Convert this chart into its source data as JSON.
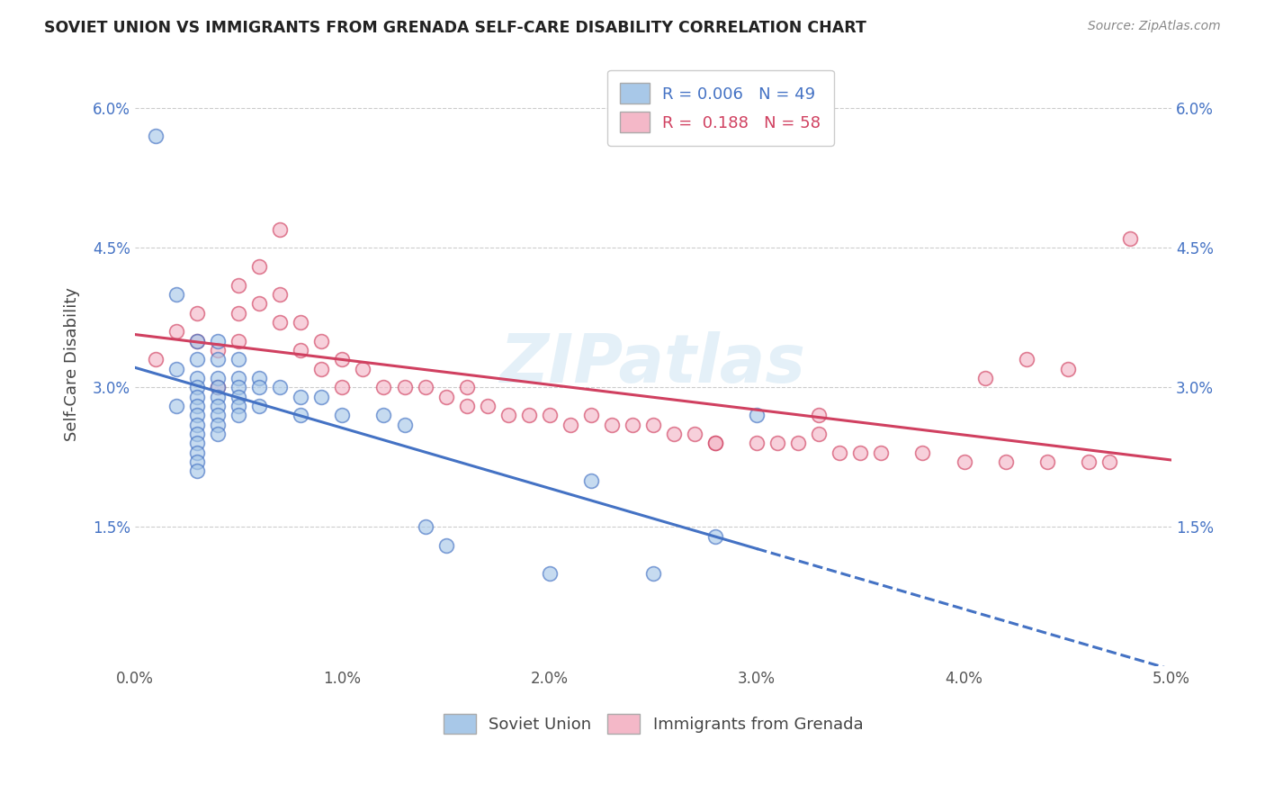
{
  "title": "SOVIET UNION VS IMMIGRANTS FROM GRENADA SELF-CARE DISABILITY CORRELATION CHART",
  "source": "Source: ZipAtlas.com",
  "ylabel": "Self-Care Disability",
  "xlim": [
    0.0,
    0.05
  ],
  "ylim": [
    0.0,
    0.065
  ],
  "xticks": [
    0.0,
    0.01,
    0.02,
    0.03,
    0.04,
    0.05
  ],
  "xticklabels": [
    "0.0%",
    "1.0%",
    "2.0%",
    "3.0%",
    "4.0%",
    "5.0%"
  ],
  "yticks": [
    0.0,
    0.015,
    0.03,
    0.045,
    0.06
  ],
  "yticklabels": [
    "",
    "1.5%",
    "3.0%",
    "4.5%",
    "6.0%"
  ],
  "legend_label1": "Soviet Union",
  "legend_label2": "Immigrants from Grenada",
  "r1": "0.006",
  "n1": "49",
  "r2": "0.188",
  "n2": "58",
  "color1": "#a8c8e8",
  "color2": "#f4b8c8",
  "line_color1": "#4472c4",
  "line_color2": "#d04060",
  "background_color": "#ffffff",
  "watermark": "ZIPatlas",
  "soviet_x": [
    0.001,
    0.002,
    0.002,
    0.002,
    0.003,
    0.003,
    0.003,
    0.003,
    0.003,
    0.003,
    0.003,
    0.003,
    0.003,
    0.003,
    0.003,
    0.003,
    0.003,
    0.004,
    0.004,
    0.004,
    0.004,
    0.004,
    0.004,
    0.004,
    0.004,
    0.004,
    0.005,
    0.005,
    0.005,
    0.005,
    0.005,
    0.005,
    0.006,
    0.006,
    0.006,
    0.007,
    0.008,
    0.008,
    0.009,
    0.01,
    0.012,
    0.013,
    0.014,
    0.015,
    0.02,
    0.022,
    0.025,
    0.028,
    0.03
  ],
  "soviet_y": [
    0.057,
    0.04,
    0.032,
    0.028,
    0.035,
    0.033,
    0.031,
    0.03,
    0.029,
    0.028,
    0.027,
    0.026,
    0.025,
    0.024,
    0.023,
    0.022,
    0.021,
    0.035,
    0.033,
    0.031,
    0.03,
    0.029,
    0.028,
    0.027,
    0.026,
    0.025,
    0.033,
    0.031,
    0.03,
    0.029,
    0.028,
    0.027,
    0.031,
    0.03,
    0.028,
    0.03,
    0.029,
    0.027,
    0.029,
    0.027,
    0.027,
    0.026,
    0.015,
    0.013,
    0.01,
    0.02,
    0.01,
    0.014,
    0.027
  ],
  "grenada_x": [
    0.001,
    0.002,
    0.003,
    0.003,
    0.004,
    0.004,
    0.005,
    0.005,
    0.005,
    0.006,
    0.006,
    0.007,
    0.007,
    0.008,
    0.008,
    0.009,
    0.009,
    0.01,
    0.01,
    0.011,
    0.012,
    0.013,
    0.014,
    0.015,
    0.016,
    0.017,
    0.018,
    0.019,
    0.02,
    0.021,
    0.022,
    0.023,
    0.024,
    0.025,
    0.026,
    0.027,
    0.028,
    0.028,
    0.03,
    0.031,
    0.032,
    0.033,
    0.033,
    0.034,
    0.035,
    0.036,
    0.038,
    0.04,
    0.041,
    0.042,
    0.043,
    0.044,
    0.045,
    0.046,
    0.047,
    0.048,
    0.007,
    0.016
  ],
  "grenada_y": [
    0.033,
    0.036,
    0.038,
    0.035,
    0.034,
    0.03,
    0.041,
    0.038,
    0.035,
    0.043,
    0.039,
    0.04,
    0.037,
    0.037,
    0.034,
    0.035,
    0.032,
    0.033,
    0.03,
    0.032,
    0.03,
    0.03,
    0.03,
    0.029,
    0.028,
    0.028,
    0.027,
    0.027,
    0.027,
    0.026,
    0.027,
    0.026,
    0.026,
    0.026,
    0.025,
    0.025,
    0.024,
    0.024,
    0.024,
    0.024,
    0.024,
    0.027,
    0.025,
    0.023,
    0.023,
    0.023,
    0.023,
    0.022,
    0.031,
    0.022,
    0.033,
    0.022,
    0.032,
    0.022,
    0.022,
    0.046,
    0.047,
    0.03
  ]
}
